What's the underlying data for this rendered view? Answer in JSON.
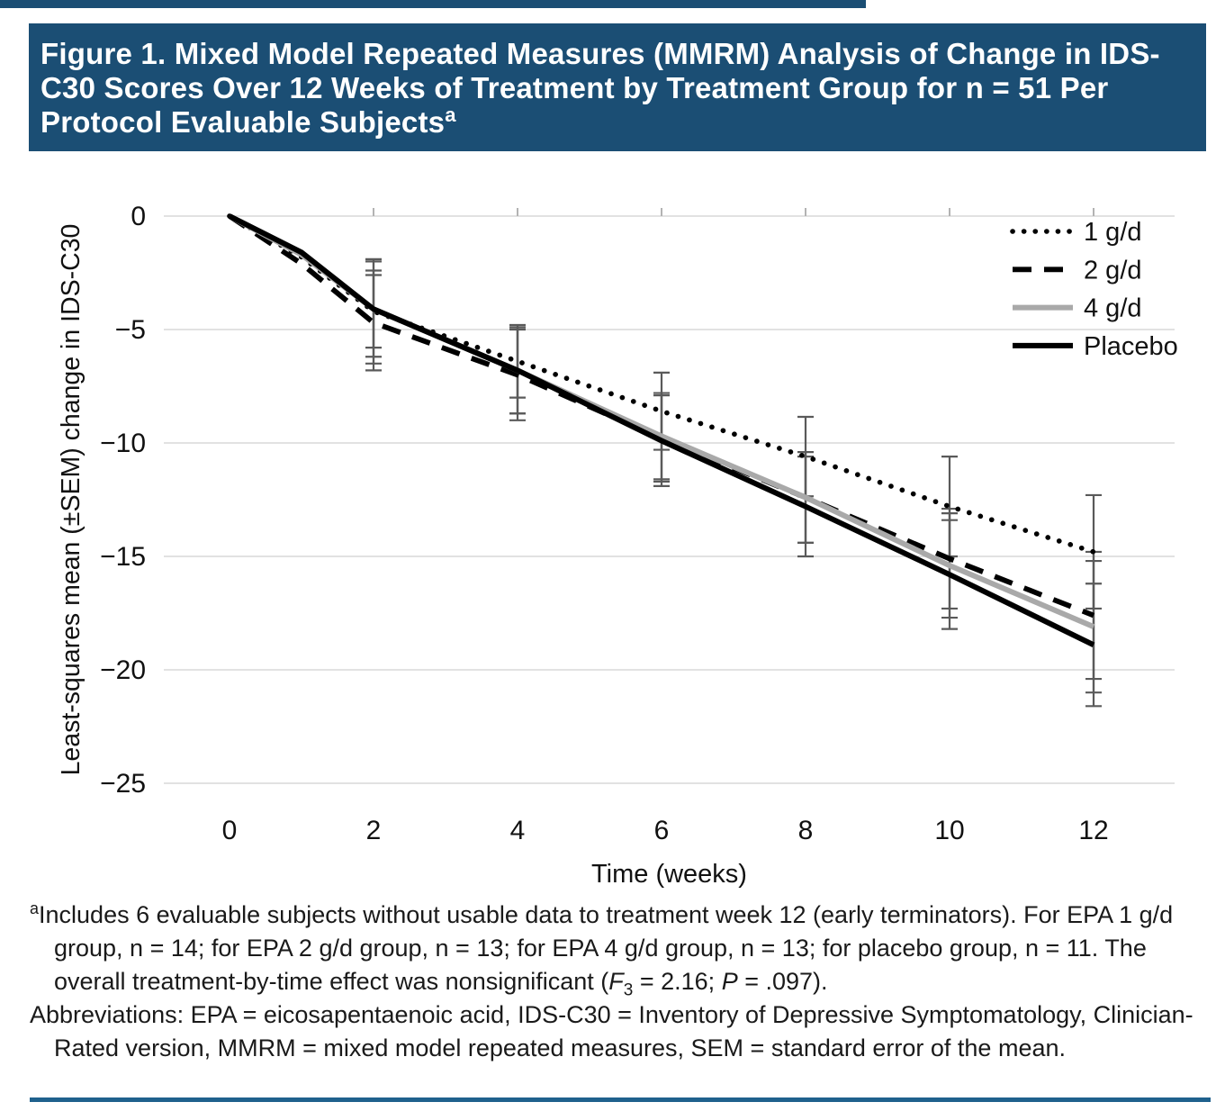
{
  "header": {
    "title": "Figure 1. Mixed Model Repeated Measures (MMRM) Analysis of Change in IDS-C30 Scores Over 12 Weeks of Treatment by Treatment Group for n = 51 Per Protocol Evaluable Subjects",
    "title_superscript": "a"
  },
  "chart_data": {
    "type": "line",
    "title": "",
    "xlabel": "Time (weeks)",
    "ylabel": "Least-squares mean (±SEM) change in IDS-C30",
    "x": [
      0,
      1,
      2,
      4,
      6,
      8,
      10,
      12
    ],
    "xticks": [
      0,
      2,
      4,
      6,
      8,
      10,
      12
    ],
    "yticks": [
      0,
      -5,
      -10,
      -15,
      -20,
      -25
    ],
    "xlim": [
      0,
      13
    ],
    "ylim": [
      -25,
      0
    ],
    "grid": "horizontal-only",
    "legend_position": "top-right",
    "error_bars_note": "±SEM whiskers shown at weeks 2, 4, 6, 8, 10, 12",
    "series": [
      {
        "name": "1 g/d",
        "style": "dotted",
        "color": "#000000",
        "values": [
          0,
          -1.8,
          -4.2,
          -6.4,
          -8.6,
          -10.6,
          -12.8,
          -14.8
        ],
        "sem": [
          0,
          0,
          2.3,
          1.6,
          1.7,
          1.75,
          2.2,
          2.5
        ]
      },
      {
        "name": "2 g/d",
        "style": "dashed",
        "color": "#000000",
        "values": [
          0,
          -2.1,
          -4.7,
          -7.0,
          -9.8,
          -12.4,
          -15.1,
          -17.6
        ],
        "sem": [
          0,
          0,
          2.1,
          2.0,
          1.9,
          2.0,
          2.2,
          2.8
        ]
      },
      {
        "name": "4 g/d",
        "style": "solid",
        "color": "#a9a9a9",
        "values": [
          0,
          -1.7,
          -4.1,
          -6.8,
          -9.7,
          -12.4,
          -15.4,
          -18.1
        ],
        "sem": [
          0,
          0,
          1.7,
          1.9,
          1.9,
          2.0,
          2.3,
          2.9
        ]
      },
      {
        "name": "Placebo",
        "style": "solid",
        "color": "#000000",
        "values": [
          0,
          -1.6,
          -4.1,
          -6.8,
          -9.9,
          -12.8,
          -15.8,
          -18.9
        ],
        "sem": [
          0,
          0,
          2.1,
          1.9,
          2.0,
          2.2,
          2.4,
          2.7
        ]
      }
    ]
  },
  "footnote": {
    "marker": "a",
    "text_start": "Includes 6 evaluable subjects without usable data to treatment week 12 (early terminators). For EPA 1 g/d group, n = 14; for EPA 2 g/d group, n = 13; for EPA 4 g/d group, n = 13; for placebo group, n = 11. The overall treatment-by-time effect was nonsignificant (",
    "f_stat_symbol": "F",
    "f_stat_sub": "3",
    "f_stat_rest": " = 2.16; ",
    "p_symbol": "P",
    "p_rest": " = .097).",
    "abbreviations": "Abbreviations: EPA = eicosapentaenoic acid, IDS-C30 = Inventory of Depressive Symptomatology, Clinician-Rated version, MMRM = mixed model repeated measures, SEM = standard error of the mean."
  },
  "colors": {
    "banner_blue": "#1b4e74",
    "rule_blue": "#1f618d",
    "gridline": "#d9d9d9",
    "axis_tick": "#b3b3b3",
    "error_bar": "#5a5a5a",
    "text_black": "#111111"
  }
}
